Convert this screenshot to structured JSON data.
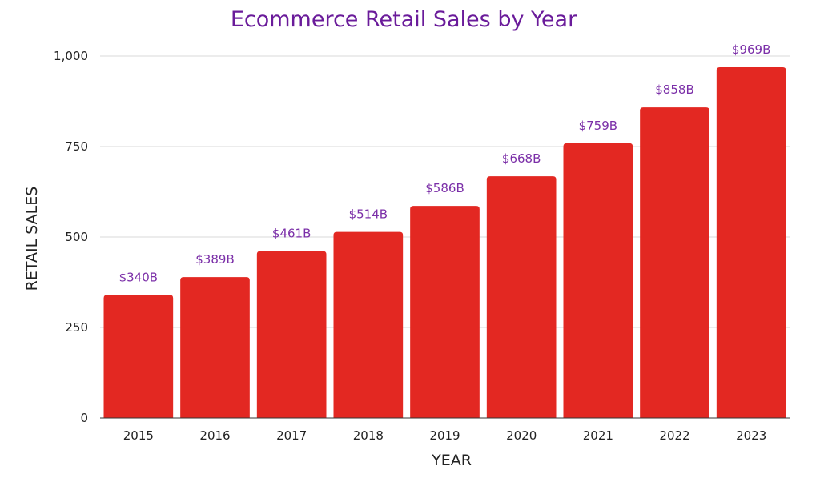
{
  "chart_data": {
    "type": "bar",
    "title": "Ecommerce Retail Sales by Year",
    "xlabel": "YEAR",
    "ylabel": "RETAIL SALES",
    "categories": [
      "2015",
      "2016",
      "2017",
      "2018",
      "2019",
      "2020",
      "2021",
      "2022",
      "2023"
    ],
    "values": [
      340,
      389,
      461,
      514,
      586,
      668,
      759,
      858,
      969
    ],
    "data_labels": [
      "$340B",
      "$389B",
      "$461B",
      "$514B",
      "$586B",
      "$668B",
      "$759B",
      "$858B",
      "$969B"
    ],
    "ylim": [
      0,
      1000
    ],
    "y_ticks": [
      0,
      250,
      500,
      750,
      1000
    ],
    "y_tick_labels": [
      "0",
      "250",
      "500",
      "750",
      "1,000"
    ],
    "grid": true,
    "legend": "none",
    "colors": {
      "bar": "#e32822",
      "title": "#6a1b9a",
      "data_label": "#7b2fa8",
      "text": "#222222",
      "gridline": "#d9d9d9"
    }
  }
}
